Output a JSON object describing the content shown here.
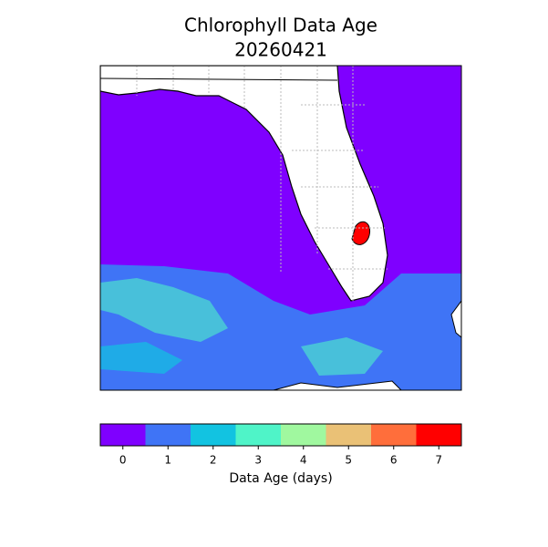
{
  "title": "Chlorophyll Data Age",
  "subtitle": "20260421",
  "colorbar": {
    "label": "Data Age (days)",
    "ticks": [
      0,
      1,
      2,
      3,
      4,
      5,
      6,
      7
    ],
    "colors": [
      "#7f00ff",
      "#3f74f6",
      "#12c3e1",
      "#4ff4c8",
      "#a0f89f",
      "#eac176",
      "#ff6e3b",
      "#ff0000"
    ]
  }
}
